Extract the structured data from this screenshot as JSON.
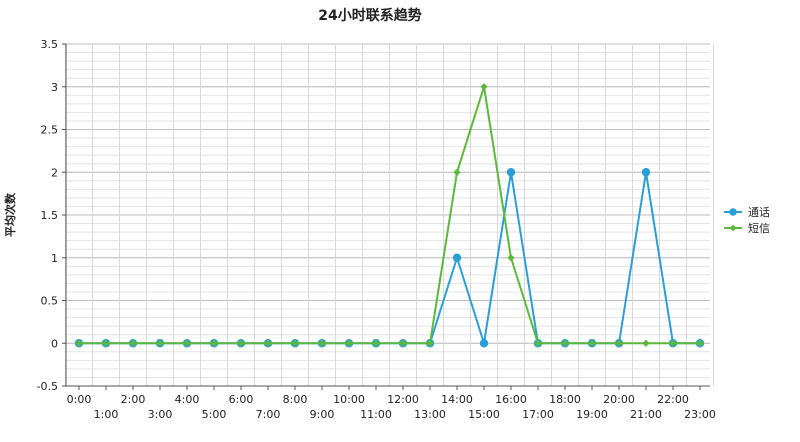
{
  "chart_data": {
    "type": "line",
    "title": "24小时联系趋势",
    "ylabel": "平均次数",
    "xlabel": "",
    "ylim": [
      -0.5,
      3.5
    ],
    "yticks": [
      -0.5,
      0,
      0.5,
      1,
      1.5,
      2,
      2.5,
      3,
      3.5
    ],
    "ytick_labels": [
      "-0.5",
      "0",
      "0.5",
      "1",
      "1.5",
      "2",
      "2.5",
      "3",
      "3.5"
    ],
    "categories": [
      "0:00",
      "1:00",
      "2:00",
      "3:00",
      "4:00",
      "5:00",
      "6:00",
      "7:00",
      "8:00",
      "9:00",
      "10:00",
      "11:00",
      "12:00",
      "13:00",
      "14:00",
      "15:00",
      "16:00",
      "17:00",
      "18:00",
      "19:00",
      "20:00",
      "21:00",
      "22:00",
      "23:00"
    ],
    "grid": true,
    "legend_position": "right",
    "series": [
      {
        "name": "通话",
        "color": "#2a9fd6",
        "marker": "circle",
        "values": [
          0,
          0,
          0,
          0,
          0,
          0,
          0,
          0,
          0,
          0,
          0,
          0,
          0,
          0,
          1,
          0,
          2,
          0,
          0,
          0,
          0,
          2,
          0,
          0
        ]
      },
      {
        "name": "短信",
        "color": "#5cb83c",
        "marker": "diamond",
        "values": [
          0,
          0,
          0,
          0,
          0,
          0,
          0,
          0,
          0,
          0,
          0,
          0,
          0,
          0,
          2,
          3,
          1,
          0,
          0,
          0,
          0,
          0,
          0,
          0
        ]
      }
    ]
  }
}
